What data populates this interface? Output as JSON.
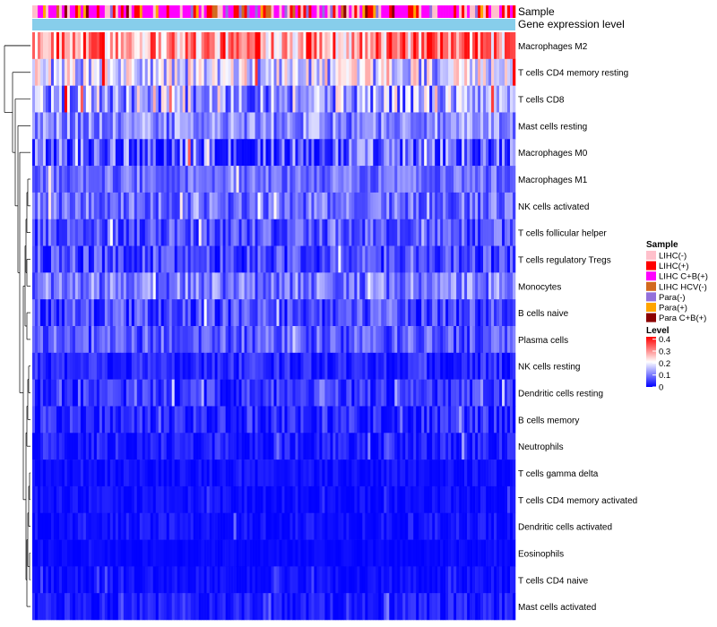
{
  "chart_data": {
    "type": "heatmap",
    "title": "",
    "annotation_tracks": [
      "Sample",
      "Gene expression level"
    ],
    "rows": [
      {
        "label": "Macrophages M2",
        "mean": 0.3,
        "spread": 0.12
      },
      {
        "label": "T cells CD4 memory resting",
        "mean": 0.17,
        "spread": 0.11
      },
      {
        "label": "T cells CD8",
        "mean": 0.14,
        "spread": 0.12
      },
      {
        "label": "Mast cells resting",
        "mean": 0.11,
        "spread": 0.07
      },
      {
        "label": "Macrophages M0",
        "mean": 0.06,
        "spread": 0.12
      },
      {
        "label": "Macrophages M1",
        "mean": 0.09,
        "spread": 0.05
      },
      {
        "label": "NK cells activated",
        "mean": 0.09,
        "spread": 0.06
      },
      {
        "label": "T cells follicular helper",
        "mean": 0.07,
        "spread": 0.06
      },
      {
        "label": "T cells regulatory  Tregs",
        "mean": 0.06,
        "spread": 0.06
      },
      {
        "label": "Monocytes",
        "mean": 0.1,
        "spread": 0.07
      },
      {
        "label": "B cells naive",
        "mean": 0.06,
        "spread": 0.06
      },
      {
        "label": "Plasma cells",
        "mean": 0.07,
        "spread": 0.06
      },
      {
        "label": "NK cells resting",
        "mean": 0.03,
        "spread": 0.04
      },
      {
        "label": "Dendritic cells resting",
        "mean": 0.04,
        "spread": 0.05
      },
      {
        "label": "B cells memory",
        "mean": 0.03,
        "spread": 0.05
      },
      {
        "label": "Neutrophils",
        "mean": 0.02,
        "spread": 0.04
      },
      {
        "label": "T cells gamma delta",
        "mean": 0.01,
        "spread": 0.02
      },
      {
        "label": "T cells CD4 memory activated",
        "mean": 0.01,
        "spread": 0.02
      },
      {
        "label": "Dendritic cells activated",
        "mean": 0.01,
        "spread": 0.03
      },
      {
        "label": "Eosinophils",
        "mean": 0.005,
        "spread": 0.01
      },
      {
        "label": "T cells CD4 naive",
        "mean": 0.01,
        "spread": 0.02
      },
      {
        "label": "Mast cells activated",
        "mean": 0.02,
        "spread": 0.03
      }
    ],
    "n_columns": 180,
    "legend_sample": {
      "title": "Sample",
      "entries": [
        {
          "label": "LIHC(-)",
          "color": "#ffc0cb"
        },
        {
          "label": "LIHC(+)",
          "color": "#ff0000"
        },
        {
          "label": "LIHC C+B(+)",
          "color": "#ff00ff"
        },
        {
          "label": "LIHC HCV(-)",
          "color": "#d2691e"
        },
        {
          "label": "Para(-)",
          "color": "#9370db"
        },
        {
          "label": "Para(+)",
          "color": "#ffa500"
        },
        {
          "label": "Para C+B(+)",
          "color": "#8b0000"
        }
      ]
    },
    "legend_level": {
      "title": "Level",
      "ticks": [
        "0.4",
        "0.3",
        "0.2",
        "0.1",
        "0"
      ],
      "tick_values": [
        0.4,
        0.3,
        0.2,
        0.1,
        0
      ],
      "range": [
        0,
        0.42
      ],
      "colors": [
        "#0000ff",
        "#ffffff",
        "#ff0000"
      ]
    },
    "expression_track_color": "#87ceeb"
  }
}
